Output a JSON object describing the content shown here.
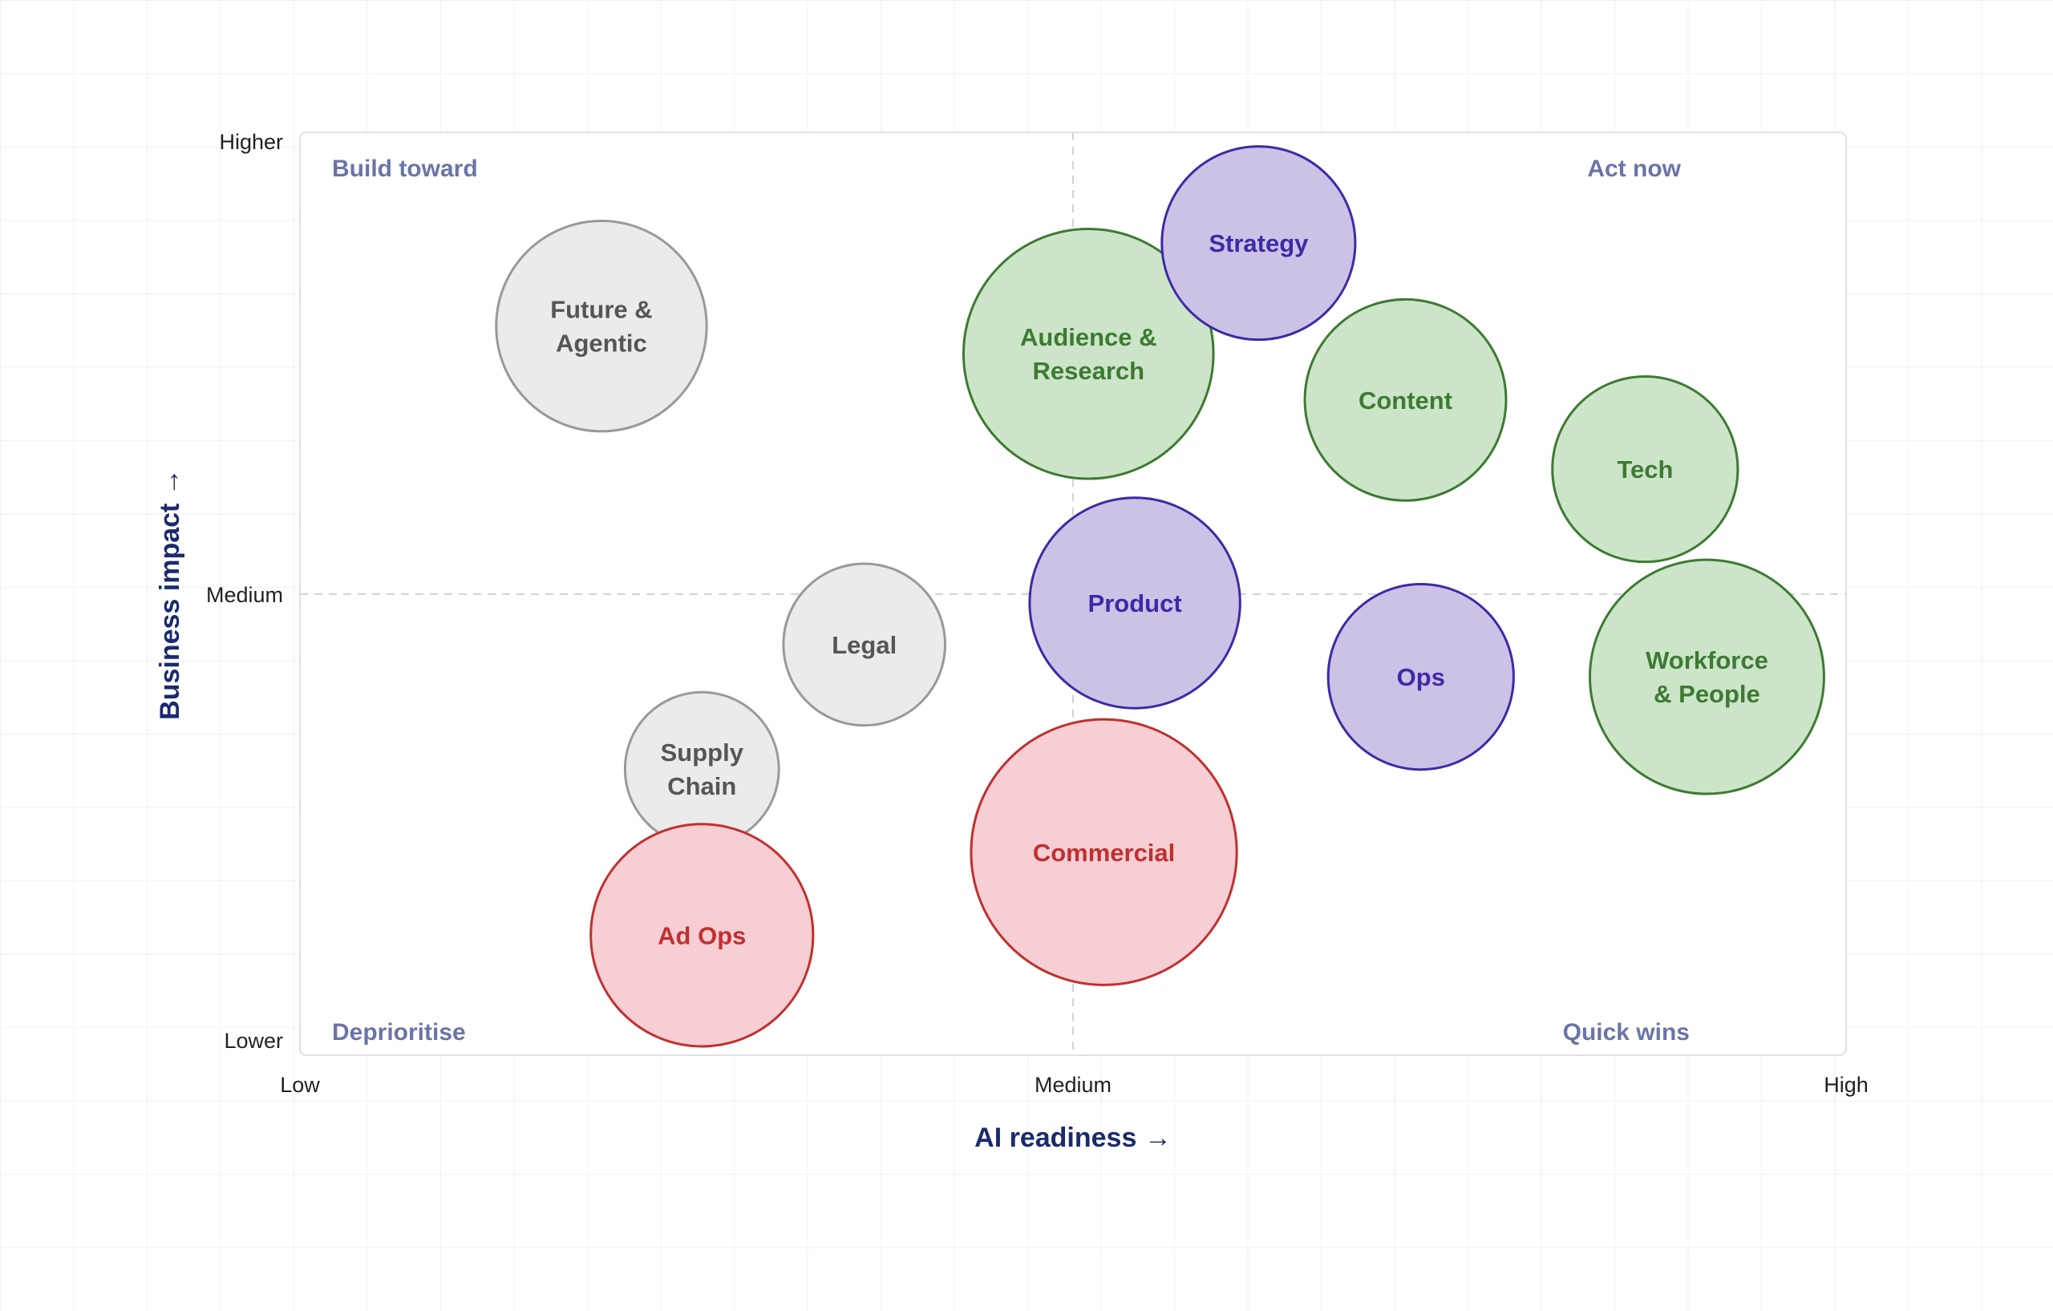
{
  "chart_data": {
    "type": "scatter",
    "xlabel": "AI readiness →",
    "ylabel": "Business impact →",
    "x_ticks": [
      "Low",
      "Medium",
      "High"
    ],
    "y_ticks": [
      "Lower",
      "Medium",
      "Higher"
    ],
    "xlim": [
      0,
      2
    ],
    "ylim": [
      0,
      2
    ],
    "grid": false,
    "quadrants": {
      "top_left": "Build toward",
      "top_right": "Act now",
      "bottom_left": "Deprioritise",
      "bottom_right": "Quick wins"
    },
    "colors": {
      "grey": {
        "fill": "#ebebeb",
        "stroke": "#999999",
        "text": "#555555"
      },
      "green": {
        "fill": "#cce5c9",
        "stroke": "#3d7a32",
        "text": "#3d7a32"
      },
      "purple": {
        "fill": "#cdc2e6",
        "stroke": "#3d2aa6",
        "text": "#3d2aa6"
      },
      "red": {
        "fill": "#f6ced3",
        "stroke": "#c0302f",
        "text": "#c0302f"
      }
    },
    "points": [
      {
        "label": [
          "Future &",
          "Agentic"
        ],
        "x": 0.39,
        "y": 1.58,
        "size": 1.6,
        "group": "grey"
      },
      {
        "label": [
          "Legal"
        ],
        "x": 0.73,
        "y": 0.89,
        "size": 1.23,
        "group": "grey"
      },
      {
        "label": [
          "Supply",
          "Chain"
        ],
        "x": 0.52,
        "y": 0.62,
        "size": 1.17,
        "group": "grey"
      },
      {
        "label": [
          "Ad Ops"
        ],
        "x": 0.52,
        "y": 0.26,
        "size": 1.69,
        "group": "red"
      },
      {
        "label": [
          "Audience &",
          "Research"
        ],
        "x": 1.02,
        "y": 1.52,
        "size": 1.9,
        "group": "green"
      },
      {
        "label": [
          "Strategy"
        ],
        "x": 1.24,
        "y": 1.76,
        "size": 1.47,
        "group": "purple"
      },
      {
        "label": [
          "Content"
        ],
        "x": 1.43,
        "y": 1.42,
        "size": 1.53,
        "group": "green"
      },
      {
        "label": [
          "Tech"
        ],
        "x": 1.74,
        "y": 1.27,
        "size": 1.41,
        "group": "green"
      },
      {
        "label": [
          "Product"
        ],
        "x": 1.08,
        "y": 0.98,
        "size": 1.6,
        "group": "purple"
      },
      {
        "label": [
          "Ops"
        ],
        "x": 1.45,
        "y": 0.82,
        "size": 1.41,
        "group": "purple"
      },
      {
        "label": [
          "Workforce",
          "& People"
        ],
        "x": 1.82,
        "y": 0.82,
        "size": 1.78,
        "group": "green"
      },
      {
        "label": [
          "Commercial"
        ],
        "x": 1.04,
        "y": 0.44,
        "size": 2.02,
        "group": "red"
      }
    ]
  }
}
